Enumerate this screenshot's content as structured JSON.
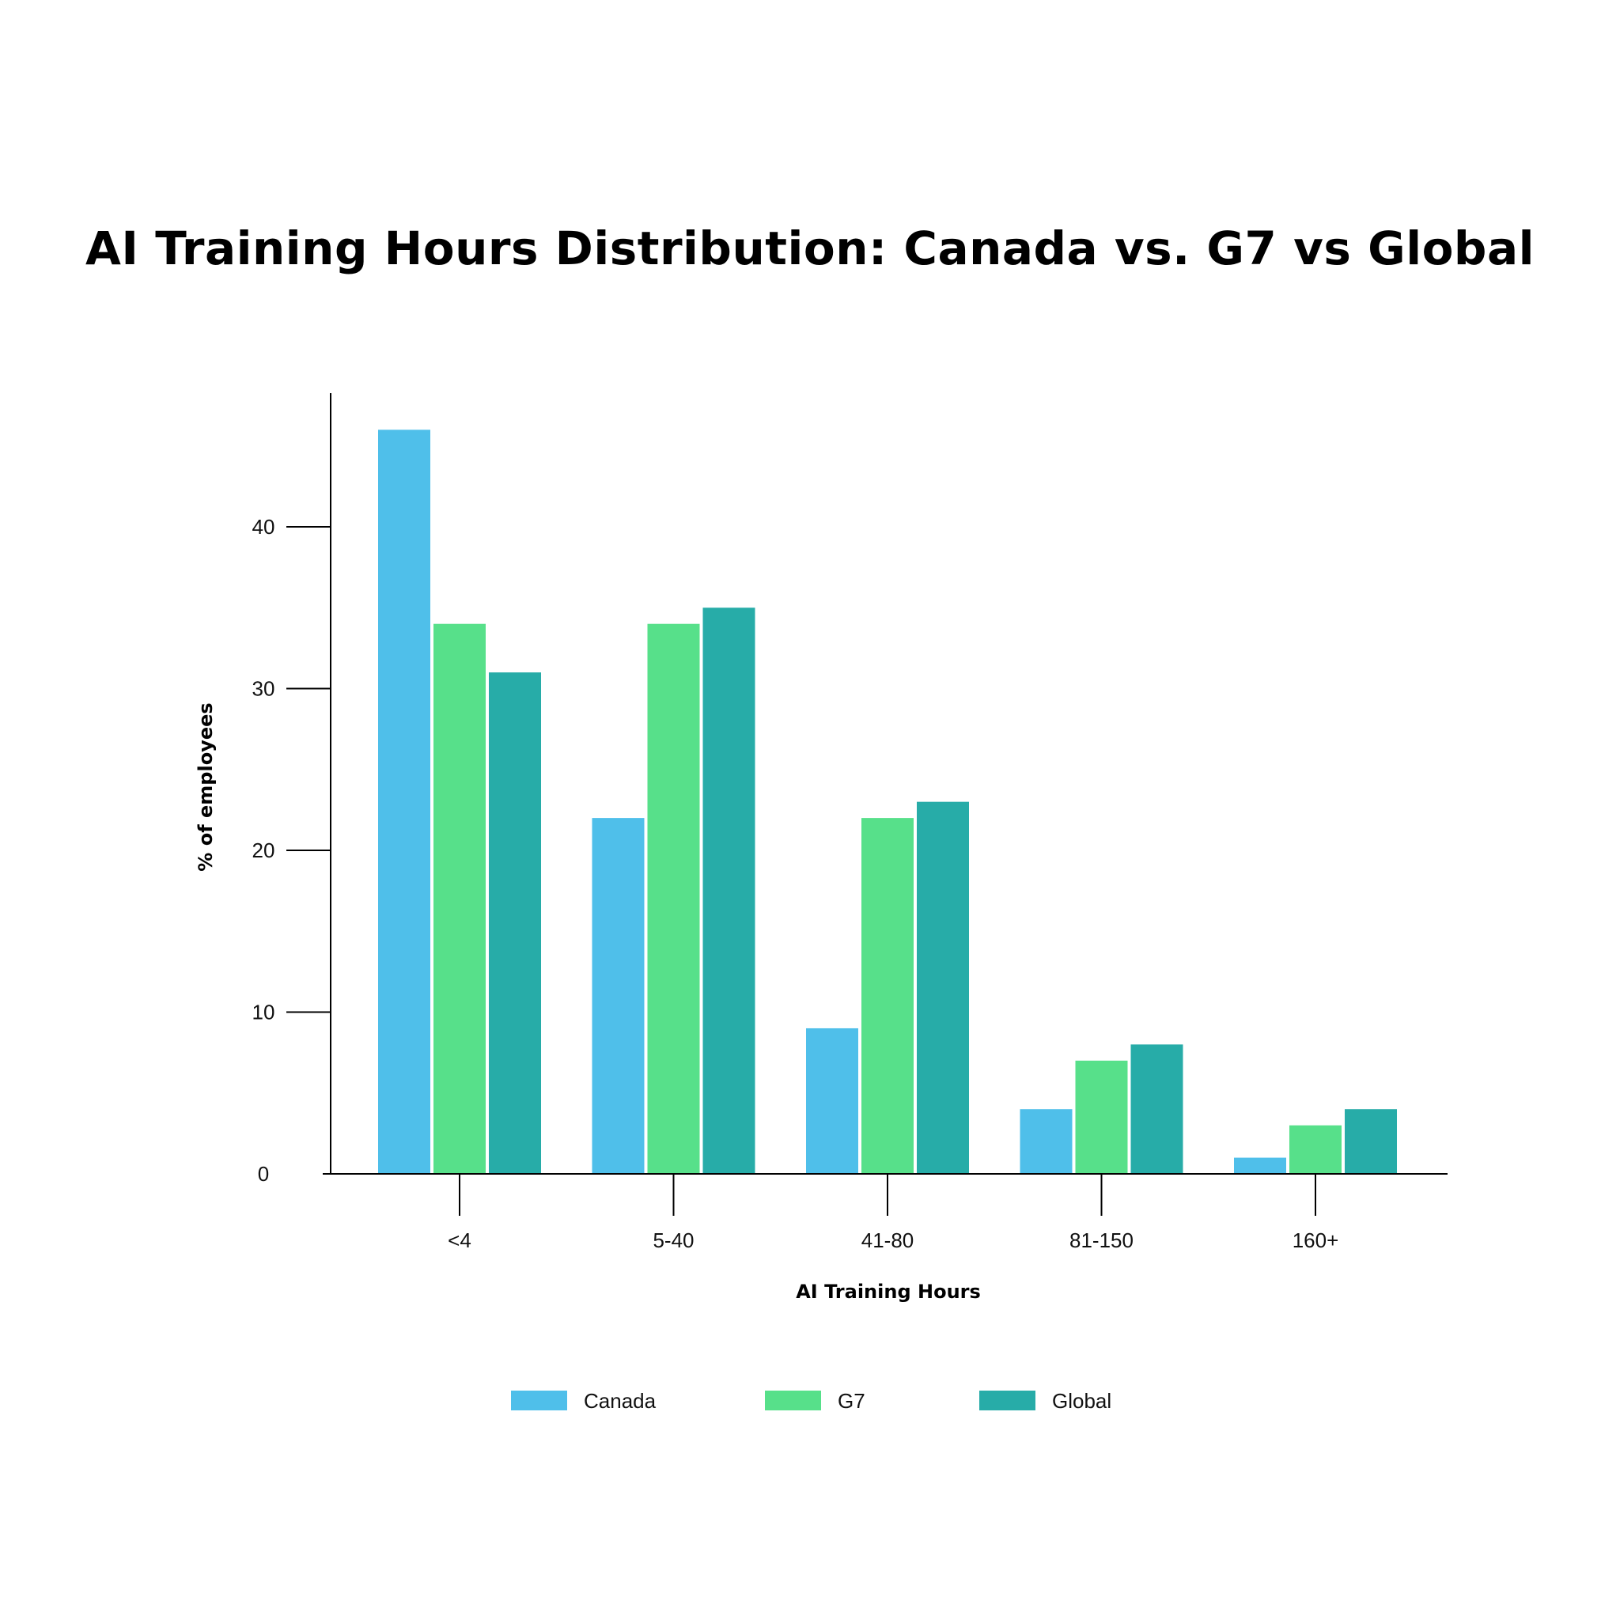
{
  "chart_data": {
    "type": "bar",
    "title": "AI Training Hours Distribution: Canada vs. G7 vs Global",
    "xlabel": "AI Training Hours",
    "ylabel": "% of employees",
    "categories": [
      "<4",
      "5-40",
      "41-80",
      "81-150",
      "160+"
    ],
    "series": [
      {
        "name": "Canada",
        "color": "#4fbfea",
        "values": [
          46,
          22,
          9,
          4,
          1
        ]
      },
      {
        "name": "G7",
        "color": "#57e08a",
        "values": [
          34,
          34,
          22,
          7,
          3
        ]
      },
      {
        "name": "Global",
        "color": "#27aca8",
        "values": [
          31,
          35,
          23,
          8,
          4
        ]
      }
    ],
    "ylim": [
      0,
      48
    ],
    "yticks": [
      0,
      10,
      20,
      30,
      40
    ],
    "grid": false,
    "legend_position": "bottom-center"
  }
}
